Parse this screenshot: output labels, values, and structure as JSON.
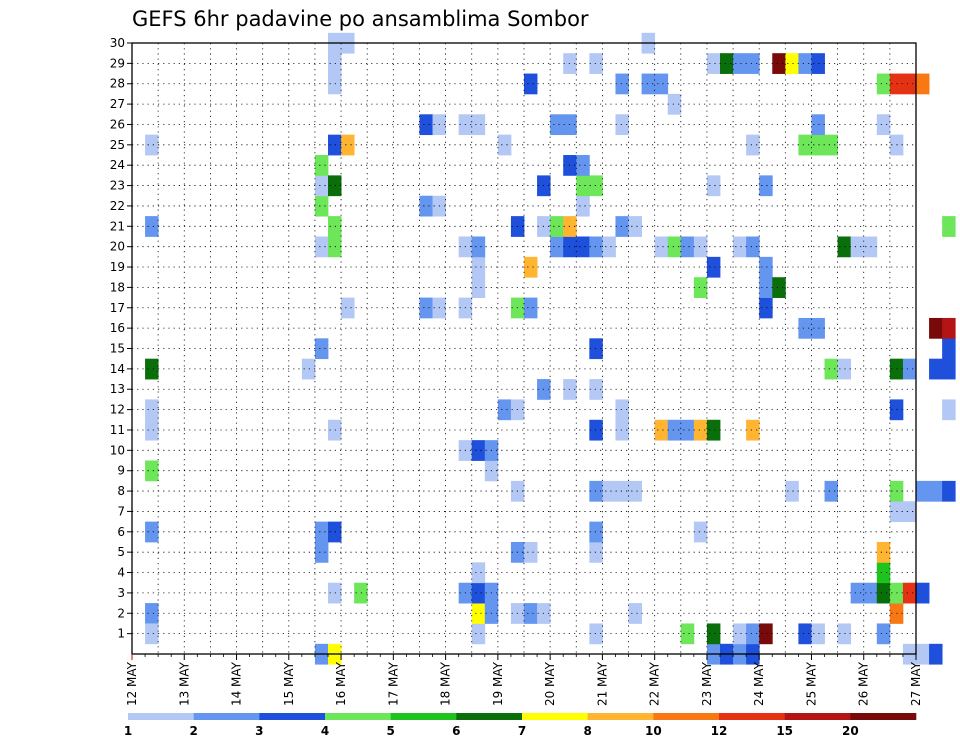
{
  "chart_data": {
    "type": "heatmap",
    "title": "GEFS 6hr padavine po ansamblima Sombor",
    "x_tick_labels": [
      "12 MAY",
      "13 MAY",
      "14 MAY",
      "15 MAY",
      "16 MAY",
      "17 MAY",
      "18 MAY",
      "19 MAY",
      "20 MAY",
      "21 MAY",
      "22 MAY",
      "23 MAY",
      "24 MAY",
      "25 MAY",
      "26 MAY",
      "27 MAY"
    ],
    "y_tick_labels": [
      "1",
      "2",
      "3",
      "4",
      "5",
      "6",
      "7",
      "8",
      "9",
      "10",
      "11",
      "12",
      "13",
      "14",
      "15",
      "16",
      "17",
      "18",
      "19",
      "20",
      "21",
      "22",
      "23",
      "24",
      "25",
      "26",
      "27",
      "28",
      "29",
      "30"
    ],
    "grid": true,
    "legend_position": "bottom",
    "colorbar": {
      "labels": [
        "1",
        "2",
        "3",
        "4",
        "5",
        "6",
        "7",
        "8",
        "10",
        "12",
        "15",
        "20"
      ],
      "colors": [
        "#b4c8f5",
        "#6496f0",
        "#1e50dc",
        "#6ee65a",
        "#1ec31e",
        "#0a6e0a",
        "#ffff00",
        "#ffb432",
        "#fa7814",
        "#e63214",
        "#b41414",
        "#780a0a"
      ]
    },
    "cells": [
      [
        0.25,
        2,
        "#6496f0"
      ],
      [
        0.25,
        1,
        "#b4c8f5"
      ],
      [
        0.25,
        11,
        "#b4c8f5"
      ],
      [
        0.25,
        12,
        "#b4c8f5"
      ],
      [
        0.25,
        14,
        "#0a6e0a"
      ],
      [
        0.25,
        21,
        "#6496f0"
      ],
      [
        0.25,
        25,
        "#b4c8f5"
      ],
      [
        0.25,
        6,
        "#6496f0"
      ],
      [
        0.25,
        9,
        "#6ee65a"
      ],
      [
        3.5,
        0,
        "#6496f0"
      ],
      [
        3.5,
        5,
        "#6496f0"
      ],
      [
        3.5,
        6,
        "#6496f0"
      ],
      [
        3.5,
        15,
        "#6496f0"
      ],
      [
        3.5,
        20,
        "#b4c8f5"
      ],
      [
        3.5,
        22,
        "#6ee65a"
      ],
      [
        3.5,
        23,
        "#b4c8f5"
      ],
      [
        3.5,
        24,
        "#6ee65a"
      ],
      [
        3.25,
        14,
        "#b4c8f5"
      ],
      [
        3.75,
        0,
        "#ffff00"
      ],
      [
        3.75,
        3,
        "#b4c8f5"
      ],
      [
        3.75,
        6,
        "#1e50dc"
      ],
      [
        3.75,
        11,
        "#b4c8f5"
      ],
      [
        3.75,
        20,
        "#6ee65a"
      ],
      [
        3.75,
        21,
        "#6ee65a"
      ],
      [
        3.75,
        23,
        "#0a6e0a"
      ],
      [
        3.75,
        25,
        "#1e50dc"
      ],
      [
        3.75,
        28,
        "#b4c8f5"
      ],
      [
        3.75,
        29,
        "#b4c8f5"
      ],
      [
        3.75,
        30,
        "#b4c8f5"
      ],
      [
        4,
        25,
        "#ffb432"
      ],
      [
        4,
        17,
        "#b4c8f5"
      ],
      [
        4,
        30,
        "#b4c8f5"
      ],
      [
        4.25,
        3,
        "#6ee65a"
      ],
      [
        5.5,
        17,
        "#6496f0"
      ],
      [
        5.5,
        22,
        "#6496f0"
      ],
      [
        5.5,
        26,
        "#1e50dc"
      ],
      [
        5.75,
        17,
        "#b4c8f5"
      ],
      [
        5.75,
        22,
        "#b4c8f5"
      ],
      [
        5.75,
        26,
        "#b4c8f5"
      ],
      [
        6.25,
        3,
        "#6496f0"
      ],
      [
        6.25,
        10,
        "#b4c8f5"
      ],
      [
        6.25,
        17,
        "#b4c8f5"
      ],
      [
        6.25,
        20,
        "#b4c8f5"
      ],
      [
        6.25,
        26,
        "#b4c8f5"
      ],
      [
        6.5,
        1,
        "#b4c8f5"
      ],
      [
        6.5,
        2,
        "#ffff00"
      ],
      [
        6.5,
        3,
        "#1e50dc"
      ],
      [
        6.5,
        4,
        "#b4c8f5"
      ],
      [
        6.5,
        10,
        "#1e50dc"
      ],
      [
        6.5,
        18,
        "#b4c8f5"
      ],
      [
        6.5,
        19,
        "#b4c8f5"
      ],
      [
        6.5,
        20,
        "#6496f0"
      ],
      [
        6.5,
        26,
        "#b4c8f5"
      ],
      [
        6.75,
        2,
        "#6496f0"
      ],
      [
        6.75,
        3,
        "#6496f0"
      ],
      [
        6.75,
        9,
        "#b4c8f5"
      ],
      [
        6.75,
        10,
        "#6496f0"
      ],
      [
        7,
        12,
        "#6496f0"
      ],
      [
        7,
        25,
        "#b4c8f5"
      ],
      [
        7.25,
        2,
        "#b4c8f5"
      ],
      [
        7.25,
        5,
        "#6496f0"
      ],
      [
        7.25,
        8,
        "#b4c8f5"
      ],
      [
        7.25,
        12,
        "#b4c8f5"
      ],
      [
        7.25,
        17,
        "#6ee65a"
      ],
      [
        7.25,
        21,
        "#1e50dc"
      ],
      [
        7.5,
        2,
        "#6496f0"
      ],
      [
        7.5,
        5,
        "#b4c8f5"
      ],
      [
        7.5,
        17,
        "#6496f0"
      ],
      [
        7.5,
        19,
        "#ffb432"
      ],
      [
        7.5,
        28,
        "#1e50dc"
      ],
      [
        7.75,
        2,
        "#b4c8f5"
      ],
      [
        7.75,
        13,
        "#6496f0"
      ],
      [
        7.75,
        23,
        "#1e50dc"
      ],
      [
        7.75,
        21,
        "#b4c8f5"
      ],
      [
        8,
        20,
        "#6496f0"
      ],
      [
        8,
        21,
        "#6ee65a"
      ],
      [
        8,
        26,
        "#6496f0"
      ],
      [
        8.25,
        13,
        "#b4c8f5"
      ],
      [
        8.25,
        20,
        "#1e50dc"
      ],
      [
        8.25,
        21,
        "#ffb432"
      ],
      [
        8.25,
        24,
        "#1e50dc"
      ],
      [
        8.25,
        26,
        "#6496f0"
      ],
      [
        8.25,
        29,
        "#b4c8f5"
      ],
      [
        8.5,
        20,
        "#1e50dc"
      ],
      [
        8.5,
        22,
        "#b4c8f5"
      ],
      [
        8.5,
        23,
        "#6ee65a"
      ],
      [
        8.5,
        24,
        "#6496f0"
      ],
      [
        8.75,
        1,
        "#b4c8f5"
      ],
      [
        8.75,
        5,
        "#b4c8f5"
      ],
      [
        8.75,
        6,
        "#6496f0"
      ],
      [
        8.75,
        8,
        "#6496f0"
      ],
      [
        8.75,
        11,
        "#1e50dc"
      ],
      [
        8.75,
        13,
        "#b4c8f5"
      ],
      [
        8.75,
        15,
        "#1e50dc"
      ],
      [
        8.75,
        20,
        "#6496f0"
      ],
      [
        8.75,
        23,
        "#6ee65a"
      ],
      [
        8.75,
        29,
        "#b4c8f5"
      ],
      [
        9,
        8,
        "#b4c8f5"
      ],
      [
        9,
        20,
        "#b4c8f5"
      ],
      [
        9.25,
        8,
        "#b4c8f5"
      ],
      [
        9.25,
        11,
        "#b4c8f5"
      ],
      [
        9.25,
        12,
        "#b4c8f5"
      ],
      [
        9.25,
        21,
        "#6496f0"
      ],
      [
        9.25,
        26,
        "#b4c8f5"
      ],
      [
        9.25,
        28,
        "#6496f0"
      ],
      [
        9.5,
        2,
        "#b4c8f5"
      ],
      [
        9.5,
        8,
        "#b4c8f5"
      ],
      [
        9.5,
        21,
        "#b4c8f5"
      ],
      [
        9.75,
        28,
        "#6496f0"
      ],
      [
        9.75,
        30,
        "#b4c8f5"
      ],
      [
        10,
        11,
        "#ffb432"
      ],
      [
        10,
        20,
        "#b4c8f5"
      ],
      [
        10,
        28,
        "#6496f0"
      ],
      [
        10.25,
        11,
        "#6496f0"
      ],
      [
        10.25,
        20,
        "#6ee65a"
      ],
      [
        10.25,
        27,
        "#b4c8f5"
      ],
      [
        10.5,
        1,
        "#6ee65a"
      ],
      [
        10.5,
        11,
        "#6496f0"
      ],
      [
        10.5,
        20,
        "#6496f0"
      ],
      [
        10.75,
        6,
        "#b4c8f5"
      ],
      [
        10.75,
        11,
        "#ffb432"
      ],
      [
        10.75,
        18,
        "#6ee65a"
      ],
      [
        10.75,
        20,
        "#b4c8f5"
      ],
      [
        11,
        0,
        "#6496f0"
      ],
      [
        11,
        1,
        "#0a6e0a"
      ],
      [
        11,
        11,
        "#0a6e0a"
      ],
      [
        11,
        19,
        "#1e50dc"
      ],
      [
        11,
        23,
        "#b4c8f5"
      ],
      [
        11,
        29,
        "#b4c8f5"
      ],
      [
        11.25,
        0,
        "#1e50dc"
      ],
      [
        11.25,
        29,
        "#0a6e0a"
      ],
      [
        11.5,
        0,
        "#6496f0"
      ],
      [
        11.5,
        1,
        "#b4c8f5"
      ],
      [
        11.5,
        20,
        "#b4c8f5"
      ],
      [
        11.5,
        29,
        "#6496f0"
      ],
      [
        11.75,
        0,
        "#1e50dc"
      ],
      [
        11.75,
        1,
        "#6496f0"
      ],
      [
        11.75,
        11,
        "#ffb432"
      ],
      [
        11.75,
        20,
        "#6496f0"
      ],
      [
        11.75,
        25,
        "#b4c8f5"
      ],
      [
        11.75,
        29,
        "#6496f0"
      ],
      [
        12,
        1,
        "#780a0a"
      ],
      [
        12,
        17,
        "#1e50dc"
      ],
      [
        12,
        18,
        "#6496f0"
      ],
      [
        12,
        19,
        "#6496f0"
      ],
      [
        12,
        23,
        "#6496f0"
      ],
      [
        12.25,
        18,
        "#0a6e0a"
      ],
      [
        12.25,
        29,
        "#780a0a"
      ],
      [
        12.5,
        8,
        "#b4c8f5"
      ],
      [
        12.5,
        29,
        "#ffff00"
      ],
      [
        12.75,
        1,
        "#1e50dc"
      ],
      [
        12.75,
        16,
        "#6496f0"
      ],
      [
        12.75,
        25,
        "#6ee65a"
      ],
      [
        12.75,
        29,
        "#6496f0"
      ],
      [
        13,
        1,
        "#b4c8f5"
      ],
      [
        13,
        16,
        "#6496f0"
      ],
      [
        13,
        25,
        "#6ee65a"
      ],
      [
        13,
        26,
        "#6496f0"
      ],
      [
        13,
        29,
        "#1e50dc"
      ],
      [
        13.25,
        8,
        "#6496f0"
      ],
      [
        13.25,
        14,
        "#6ee65a"
      ],
      [
        13.25,
        25,
        "#6ee65a"
      ],
      [
        13.5,
        1,
        "#b4c8f5"
      ],
      [
        13.5,
        14,
        "#b4c8f5"
      ],
      [
        13.5,
        20,
        "#0a6e0a"
      ],
      [
        13.75,
        3,
        "#6496f0"
      ],
      [
        13.75,
        20,
        "#b4c8f5"
      ],
      [
        14,
        3,
        "#6496f0"
      ],
      [
        14,
        20,
        "#b4c8f5"
      ],
      [
        14.25,
        1,
        "#6496f0"
      ],
      [
        14.25,
        3,
        "#0a6e0a"
      ],
      [
        14.25,
        4,
        "#1ec31e"
      ],
      [
        14.25,
        5,
        "#ffb432"
      ],
      [
        14.25,
        26,
        "#b4c8f5"
      ],
      [
        14.25,
        28,
        "#6ee65a"
      ],
      [
        14.5,
        2,
        "#fa7814"
      ],
      [
        14.5,
        3,
        "#6ee65a"
      ],
      [
        14.5,
        7,
        "#b4c8f5"
      ],
      [
        14.5,
        8,
        "#6ee65a"
      ],
      [
        14.5,
        12,
        "#1e50dc"
      ],
      [
        14.5,
        14,
        "#0a6e0a"
      ],
      [
        14.5,
        25,
        "#b4c8f5"
      ],
      [
        14.5,
        28,
        "#e63214"
      ],
      [
        14.75,
        3,
        "#e63214"
      ],
      [
        14.75,
        7,
        "#b4c8f5"
      ],
      [
        14.75,
        14,
        "#6496f0"
      ],
      [
        14.75,
        28,
        "#e63214"
      ],
      [
        14.75,
        0,
        "#b4c8f5"
      ],
      [
        15,
        3,
        "#1e50dc"
      ],
      [
        15,
        8,
        "#6496f0"
      ],
      [
        15,
        28,
        "#fa7814"
      ],
      [
        15,
        0,
        "#b4c8f5"
      ],
      [
        15.25,
        8,
        "#6496f0"
      ],
      [
        15.25,
        14,
        "#1e50dc"
      ],
      [
        15.25,
        16,
        "#780a0a"
      ],
      [
        15.25,
        0,
        "#1e50dc"
      ],
      [
        15.5,
        8,
        "#1e50dc"
      ],
      [
        15.5,
        12,
        "#b4c8f5"
      ],
      [
        15.5,
        14,
        "#1e50dc"
      ],
      [
        15.5,
        15,
        "#1e50dc"
      ],
      [
        15.5,
        16,
        "#b41414"
      ],
      [
        15.5,
        21,
        "#6ee65a"
      ]
    ]
  }
}
